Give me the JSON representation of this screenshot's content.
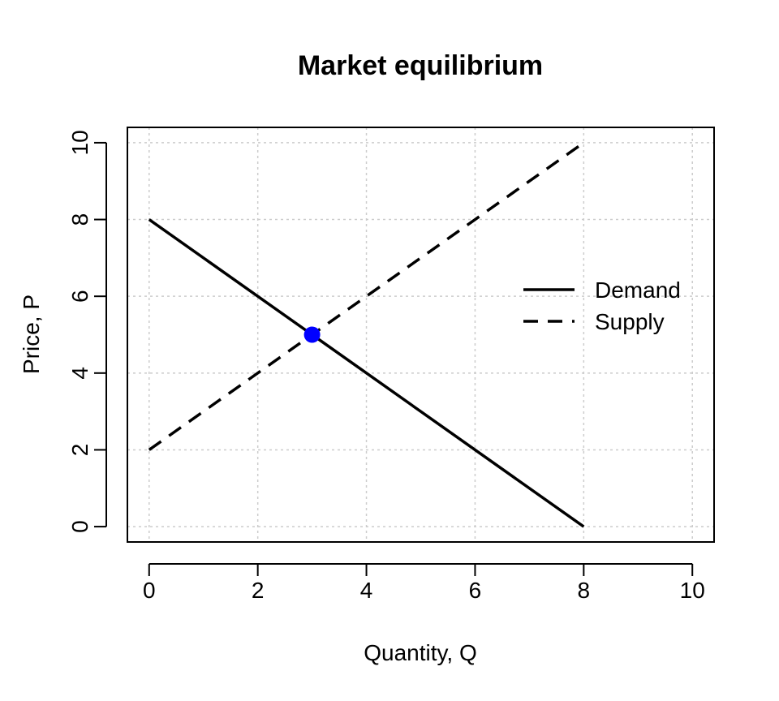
{
  "chart_data": {
    "type": "line",
    "title": "Market equilibrium",
    "xlabel": "Quantity, Q",
    "ylabel": "Price, P",
    "xlim": [
      -0.4,
      10.4
    ],
    "ylim": [
      -0.4,
      10.4
    ],
    "xticks": [
      0,
      2,
      4,
      6,
      8,
      10
    ],
    "yticks": [
      0,
      2,
      4,
      6,
      8,
      10
    ],
    "grid": true,
    "legend_position": "right",
    "series": [
      {
        "name": "Demand",
        "style": "solid",
        "color": "#000000",
        "x": [
          0,
          8
        ],
        "y": [
          8,
          0
        ]
      },
      {
        "name": "Supply",
        "style": "dashed",
        "color": "#000000",
        "x": [
          0,
          8
        ],
        "y": [
          2,
          10
        ]
      }
    ],
    "points": [
      {
        "x": 3,
        "y": 5,
        "color": "#0000ff"
      }
    ]
  }
}
